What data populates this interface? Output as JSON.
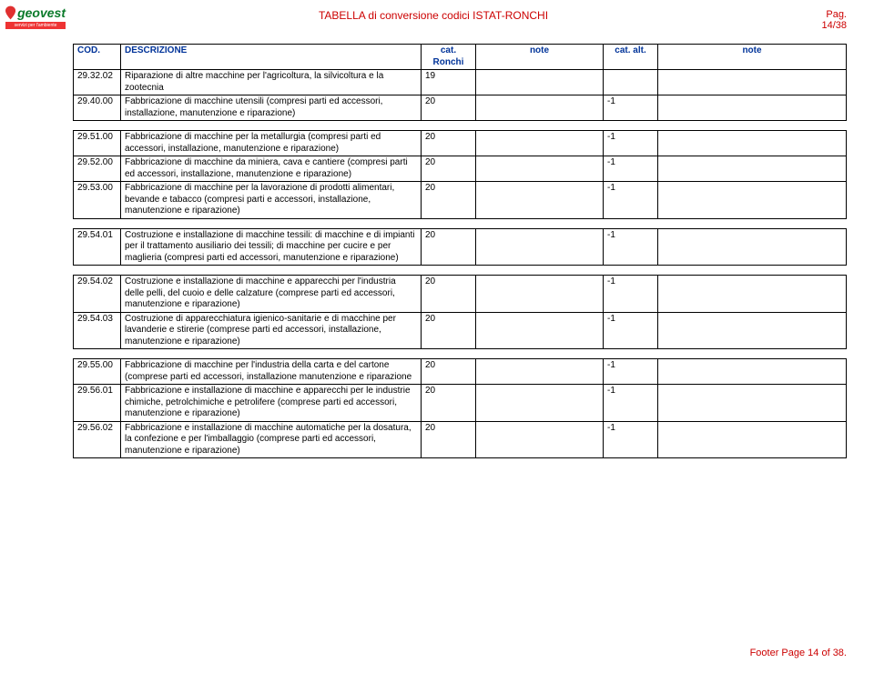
{
  "header": {
    "logo_name": "geovest",
    "logo_tagline": "servizi per l'ambiente",
    "title": "TABELLA di conversione codici ISTAT-RONCHI",
    "page_label": "Pag. 14/38",
    "logo_green": "#0a7a2a",
    "logo_red": "#e03030",
    "title_color": "#cc0000"
  },
  "columns": {
    "cod": "COD.",
    "desc": "DESCRIZIONE",
    "cat": "cat. Ronchi",
    "note1": "note",
    "alt": "cat. alt.",
    "note2": "note"
  },
  "groups": [
    {
      "has_header": true,
      "rows": [
        {
          "cod": "29.32.02",
          "desc": "Riparazione di altre macchine per l'agricoltura, la silvicoltura e la zootecnia",
          "cat": "19",
          "note1": "",
          "alt": "",
          "note2": ""
        },
        {
          "cod": "29.40.00",
          "desc": "Fabbricazione di macchine utensili (compresi parti ed accessori, installazione, manutenzione e riparazione)",
          "cat": "20",
          "note1": "",
          "alt": "-1",
          "note2": ""
        }
      ]
    },
    {
      "has_header": false,
      "rows": [
        {
          "cod": "29.51.00",
          "desc": "Fabbricazione di macchine per la metallurgia (compresi parti ed accessori, installazione, manutenzione e riparazione)",
          "cat": "20",
          "note1": "",
          "alt": "-1",
          "note2": ""
        },
        {
          "cod": "29.52.00",
          "desc": "Fabbricazione di macchine da miniera, cava e cantiere (compresi parti ed accessori, installazione, manutenzione e riparazione)",
          "cat": "20",
          "note1": "",
          "alt": "-1",
          "note2": ""
        },
        {
          "cod": "29.53.00",
          "desc": "Fabbricazione di macchine per la lavorazione di prodotti alimentari, bevande e tabacco (compresi parti e accessori, installazione, manutenzione e riparazione)",
          "cat": "20",
          "note1": "",
          "alt": "-1",
          "note2": ""
        }
      ]
    },
    {
      "has_header": false,
      "rows": [
        {
          "cod": "29.54.01",
          "desc": "Costruzione e installazione di macchine tessili: di macchine e di impianti per il trattamento ausiliario dei tessili; di macchine per cucire e per maglieria (compresi parti ed accessori, manutenzione e riparazione)",
          "cat": "20",
          "note1": "",
          "alt": "-1",
          "note2": ""
        }
      ]
    },
    {
      "has_header": false,
      "rows": [
        {
          "cod": "29.54.02",
          "desc": "Costruzione e installazione di macchine e apparecchi per l'industria delle pelli, del cuoio e delle calzature (comprese parti ed accessori, manutenzione e riparazione)",
          "cat": "20",
          "note1": "",
          "alt": "-1",
          "note2": ""
        },
        {
          "cod": "29.54.03",
          "desc": "Costruzione di apparecchiatura igienico-sanitarie e di macchine per lavanderie e stirerie (comprese parti ed accessori, installazione, manutenzione e riparazione)",
          "cat": "20",
          "note1": "",
          "alt": "-1",
          "note2": ""
        }
      ]
    },
    {
      "has_header": false,
      "rows": [
        {
          "cod": "29.55.00",
          "desc": "Fabbricazione di macchine per l'industria della carta e del cartone (comprese parti ed accessori, installazione manutenzione e riparazione",
          "cat": "20",
          "note1": "",
          "alt": "-1",
          "note2": ""
        },
        {
          "cod": "29.56.01",
          "desc": "Fabbricazione e installazione di macchine e apparecchi per le industrie chimiche, petrolchimiche e petrolifere (comprese parti ed accessori, manutenzione e riparazione)",
          "cat": "20",
          "note1": "",
          "alt": "-1",
          "note2": ""
        },
        {
          "cod": "29.56.02",
          "desc": "Fabbricazione e installazione di macchine automatiche per la dosatura, la confezione e per l'imballaggio (comprese parti ed accessori, manutenzione e riparazione)",
          "cat": "20",
          "note1": "",
          "alt": "-1",
          "note2": ""
        }
      ]
    }
  ],
  "footer": "Footer Page 14 of 38."
}
